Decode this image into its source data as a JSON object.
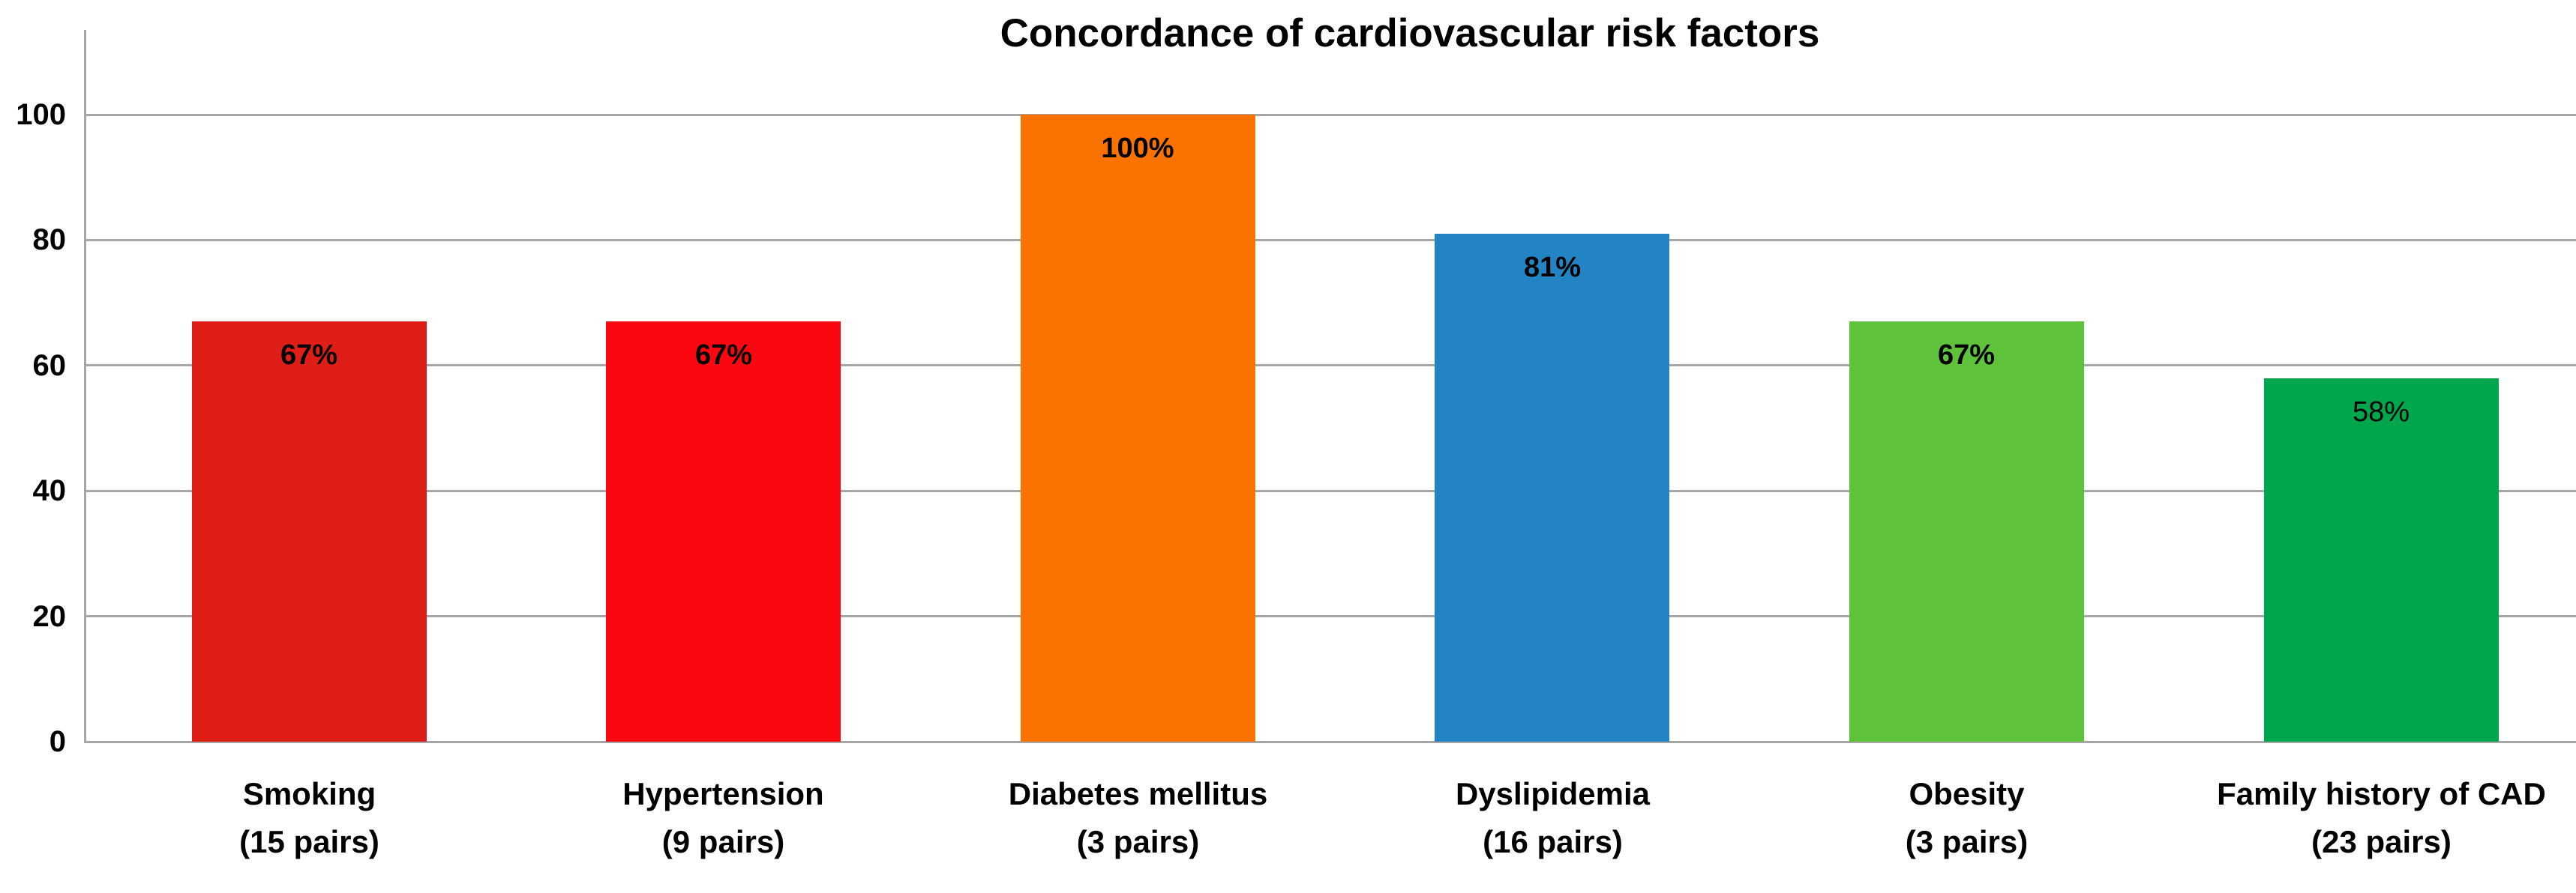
{
  "chart_data": {
    "type": "bar",
    "title": "Concordance of cardiovascular risk factors",
    "categories": [
      "Smoking\n(15 pairs)",
      "Hypertension\n(9 pairs)",
      "Diabetes mellitus\n(3 pairs)",
      "Dyslipidemia\n(16 pairs)",
      "Obesity\n(3 pairs)",
      "Family history of CAD\n(23 pairs)"
    ],
    "values": [
      67,
      67,
      100,
      81,
      67,
      58
    ],
    "bar_labels": [
      "67%",
      "67%",
      "100%",
      "81%",
      "67%",
      "58%"
    ],
    "bar_label_bold": [
      true,
      true,
      true,
      true,
      true,
      false
    ],
    "bar_colors": [
      "#df1f17",
      "#fc0711",
      "#fa7300",
      "#2284c5",
      "#5ec23a",
      "#00a64c"
    ],
    "xlabel": "",
    "ylabel": "",
    "ylim": [
      0,
      113
    ],
    "yticks": [
      0,
      20,
      40,
      60,
      80,
      100
    ],
    "grid": true,
    "legend": false,
    "gridline_color": "#a6a6a6",
    "axis_color": "#a6a6a6",
    "background_color": "#ffffff",
    "text_color": "#000000"
  }
}
